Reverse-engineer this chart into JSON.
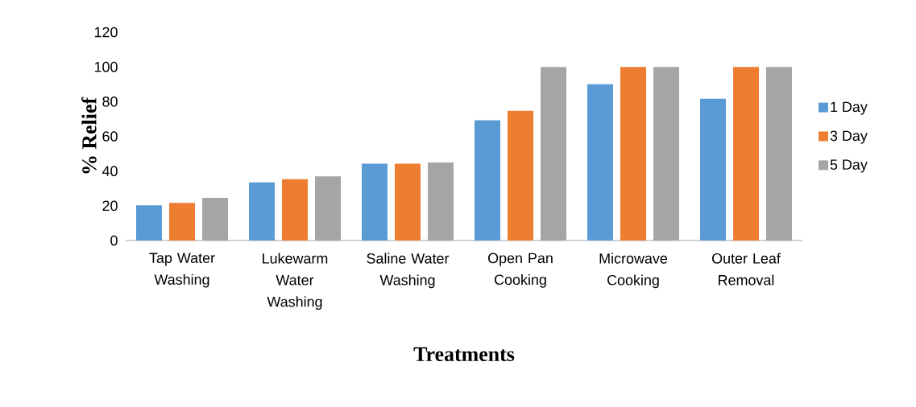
{
  "chart_data": {
    "type": "bar",
    "xlabel": "Treatments",
    "ylabel": "% Relief",
    "categories": [
      "Tap Water Washing",
      "Lukewarm Water Washing",
      "Saline Water Washing",
      "Open Pan Cooking",
      "Microwave Cooking",
      "Outer Leaf Removal"
    ],
    "series": [
      {
        "name": "1 Day",
        "color": "#5b9bd5",
        "values": [
          20.3,
          33.5,
          44.3,
          69.3,
          90,
          81.7
        ]
      },
      {
        "name": "3 Day",
        "color": "#ed7d31",
        "values": [
          21.7,
          35.3,
          44.3,
          74.7,
          100,
          100
        ]
      },
      {
        "name": "5 Day",
        "color": "#a5a5a5",
        "values": [
          24.5,
          37,
          45,
          100,
          100,
          100
        ]
      }
    ],
    "ylim": [
      0,
      120
    ],
    "yticks": [
      0,
      20,
      40,
      60,
      80,
      100,
      120
    ],
    "grid": false,
    "legend": "right"
  }
}
